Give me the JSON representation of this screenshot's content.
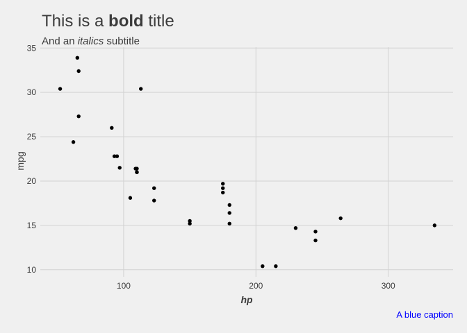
{
  "chart_data": {
    "type": "scatter",
    "title": {
      "prefix": "This is a ",
      "bold": "bold",
      "suffix": " title"
    },
    "subtitle": {
      "prefix": "And an ",
      "italic": "italics",
      "suffix": " subtitle"
    },
    "xlabel": "hp",
    "ylabel": "mpg",
    "caption": "A blue caption",
    "caption_color": "#0000ff",
    "xlim": [
      37,
      349
    ],
    "ylim": [
      9.2,
      35.1
    ],
    "x_ticks": [
      100,
      200,
      300
    ],
    "y_ticks": [
      10,
      15,
      20,
      25,
      30,
      35
    ],
    "grid": true,
    "background": "#f0f0f0",
    "grid_color": "#d2d2d2",
    "point_color": "#000000",
    "points": [
      {
        "x": 110,
        "y": 21.0
      },
      {
        "x": 110,
        "y": 21.0
      },
      {
        "x": 93,
        "y": 22.8
      },
      {
        "x": 110,
        "y": 21.4
      },
      {
        "x": 175,
        "y": 18.7
      },
      {
        "x": 105,
        "y": 18.1
      },
      {
        "x": 245,
        "y": 14.3
      },
      {
        "x": 62,
        "y": 24.4
      },
      {
        "x": 95,
        "y": 22.8
      },
      {
        "x": 123,
        "y": 19.2
      },
      {
        "x": 123,
        "y": 17.8
      },
      {
        "x": 180,
        "y": 16.4
      },
      {
        "x": 180,
        "y": 17.3
      },
      {
        "x": 180,
        "y": 15.2
      },
      {
        "x": 205,
        "y": 10.4
      },
      {
        "x": 215,
        "y": 10.4
      },
      {
        "x": 230,
        "y": 14.7
      },
      {
        "x": 66,
        "y": 32.4
      },
      {
        "x": 52,
        "y": 30.4
      },
      {
        "x": 65,
        "y": 33.9
      },
      {
        "x": 97,
        "y": 21.5
      },
      {
        "x": 150,
        "y": 15.5
      },
      {
        "x": 150,
        "y": 15.2
      },
      {
        "x": 245,
        "y": 13.3
      },
      {
        "x": 175,
        "y": 19.2
      },
      {
        "x": 66,
        "y": 27.3
      },
      {
        "x": 91,
        "y": 26.0
      },
      {
        "x": 113,
        "y": 30.4
      },
      {
        "x": 264,
        "y": 15.8
      },
      {
        "x": 175,
        "y": 19.7
      },
      {
        "x": 335,
        "y": 15.0
      },
      {
        "x": 109,
        "y": 21.4
      }
    ]
  }
}
